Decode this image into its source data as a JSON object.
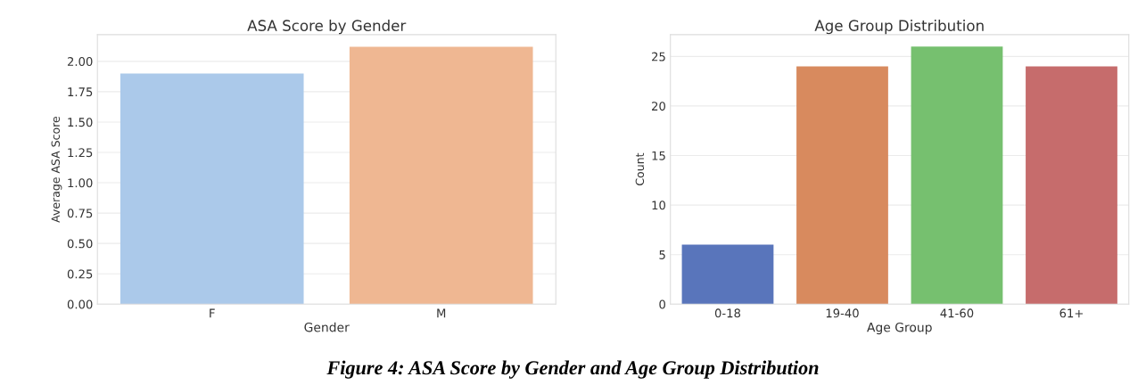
{
  "chart_data": [
    {
      "type": "bar",
      "title": "ASA Score by Gender",
      "xlabel": "Gender",
      "ylabel": "Average ASA Score",
      "categories": [
        "F",
        "M"
      ],
      "values": [
        1.9,
        2.12
      ],
      "colors": [
        "#abc9ea",
        "#efb792"
      ],
      "ylim": [
        0,
        2.22
      ],
      "yticks": [
        {
          "value": 0,
          "label": "0.00"
        },
        {
          "value": 0.25,
          "label": "0.25"
        },
        {
          "value": 0.5,
          "label": "0.50"
        },
        {
          "value": 0.75,
          "label": "0.75"
        },
        {
          "value": 1,
          "label": "1.00"
        },
        {
          "value": 1.25,
          "label": "1.25"
        },
        {
          "value": 1.5,
          "label": "1.50"
        },
        {
          "value": 1.75,
          "label": "1.75"
        },
        {
          "value": 2,
          "label": "2.00"
        }
      ],
      "grid": "y"
    },
    {
      "type": "bar",
      "title": "Age Group Distribution",
      "xlabel": "Age Group",
      "ylabel": "Count",
      "categories": [
        "0-18",
        "19-40",
        "41-60",
        "61+"
      ],
      "values": [
        6,
        24,
        26,
        24
      ],
      "colors": [
        "#5975bb",
        "#d88a5e",
        "#76c06f",
        "#c66c6c"
      ],
      "ylim": [
        0,
        27.2
      ],
      "yticks": [
        0,
        5,
        10,
        15,
        20,
        25
      ],
      "grid": "y",
      "annotations": [
        "Figure 4: ASA Score by Gender and Age Group Distribution"
      ]
    }
  ]
}
